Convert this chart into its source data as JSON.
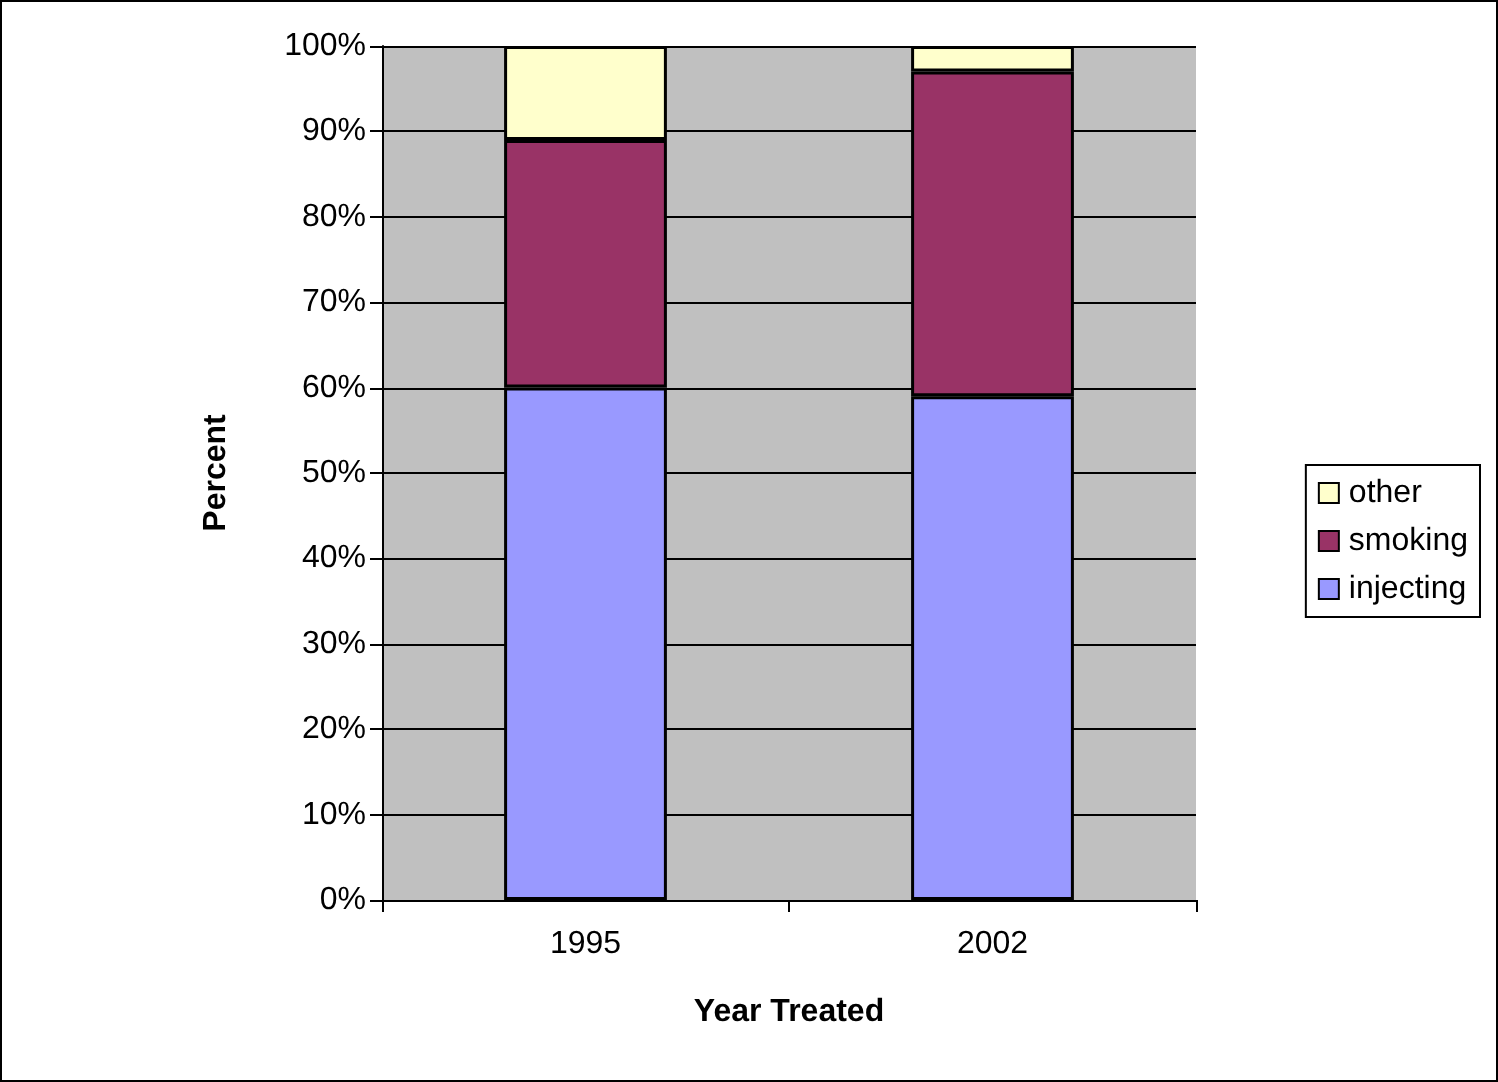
{
  "chart_data": {
    "type": "bar",
    "stacked": true,
    "xlabel": "Year Treated",
    "ylabel": "Percent",
    "categories": [
      "1995",
      "2002"
    ],
    "series": [
      {
        "name": "injecting",
        "color": "#9999ff",
        "values": [
          60,
          59
        ]
      },
      {
        "name": "smoking",
        "color": "#993366",
        "values": [
          29,
          38
        ]
      },
      {
        "name": "other",
        "color": "#ffffcc",
        "values": [
          11,
          3
        ]
      }
    ],
    "ylim": [
      0,
      100
    ],
    "yticks": [
      {
        "value": 0,
        "label": "0%"
      },
      {
        "value": 10,
        "label": "10%"
      },
      {
        "value": 20,
        "label": "20%"
      },
      {
        "value": 30,
        "label": "30%"
      },
      {
        "value": 40,
        "label": "40%"
      },
      {
        "value": 50,
        "label": "50%"
      },
      {
        "value": 60,
        "label": "60%"
      },
      {
        "value": 70,
        "label": "70%"
      },
      {
        "value": 80,
        "label": "80%"
      },
      {
        "value": 90,
        "label": "90%"
      },
      {
        "value": 100,
        "label": "100%"
      }
    ],
    "grid": "y",
    "legend": "right"
  }
}
